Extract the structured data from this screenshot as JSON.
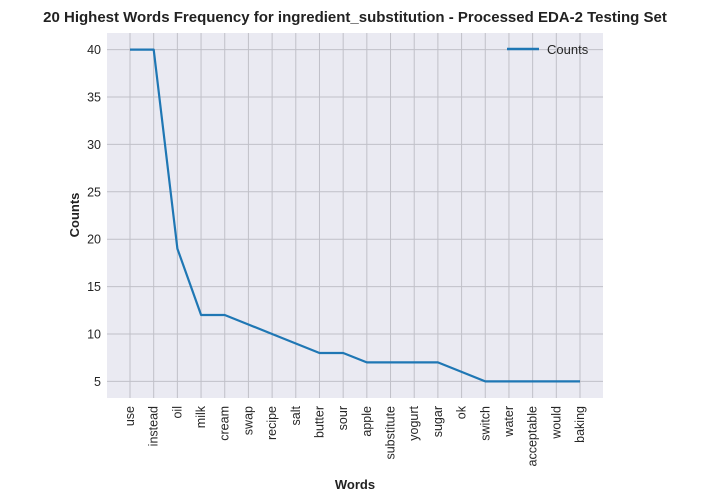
{
  "chart_data": {
    "type": "line",
    "title": "20 Highest Words Frequency for ingredient_substitution - Processed EDA-2 Testing Set",
    "xlabel": "Words",
    "ylabel": "Counts",
    "categories": [
      "use",
      "instead",
      "oil",
      "milk",
      "cream",
      "swap",
      "recipe",
      "salt",
      "butter",
      "sour",
      "apple",
      "substitute",
      "yogurt",
      "sugar",
      "ok",
      "switch",
      "water",
      "acceptable",
      "would",
      "baking"
    ],
    "series": [
      {
        "name": "Counts",
        "values": [
          40,
          40,
          19,
          12,
          12,
          11,
          10,
          9,
          8,
          8,
          7,
          7,
          7,
          7,
          6,
          5,
          5,
          5,
          5,
          5
        ]
      }
    ],
    "ylim": [
      3.25,
      41.75
    ],
    "yticks": [
      5,
      10,
      15,
      20,
      25,
      30,
      35,
      40
    ],
    "grid": true,
    "legend": "top-right",
    "colors": {
      "line": "#1f77b4",
      "background": "#eaeaf2",
      "grid": "#c0c0c8"
    }
  }
}
